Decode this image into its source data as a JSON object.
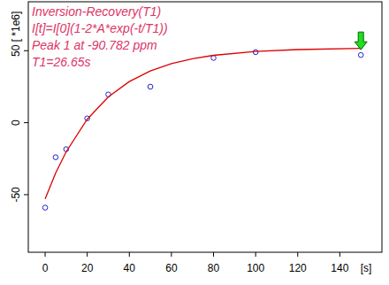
{
  "chart_data": {
    "type": "scatter",
    "annotations": [
      "Inversion-Recovery(T1)",
      "I[t]=I[0](1-2*A*exp(-t/T1))",
      "Peak 1 at -90.782 ppm",
      "T1=26.65s"
    ],
    "x_label": "[s]",
    "y_label": "[ *1e6]",
    "xlim": [
      -8,
      160
    ],
    "xticks": [
      0,
      20,
      40,
      60,
      80,
      100,
      120,
      140
    ],
    "ylim": [
      -90,
      84
    ],
    "yticks": [
      -50,
      0,
      50
    ],
    "grid": false,
    "series": [
      {
        "type": "scatter",
        "marker": "circle",
        "color": "#2222cc",
        "x": [
          0,
          5,
          10,
          20,
          30,
          50,
          80,
          100,
          150
        ],
        "values": [
          -59,
          -24,
          -18.4,
          3,
          19.6,
          25,
          45,
          49,
          47
        ]
      },
      {
        "type": "line",
        "line_style": "solid",
        "color": "#dd0000",
        "x": [
          0,
          5,
          10,
          20,
          30,
          40,
          50,
          60,
          70,
          80,
          100,
          120,
          150
        ],
        "values": [
          -53,
          -35,
          -20.2,
          2.4,
          17.9,
          28.6,
          36,
          41,
          44.4,
          46.8,
          49.5,
          50.8,
          51.6
        ]
      }
    ]
  }
}
